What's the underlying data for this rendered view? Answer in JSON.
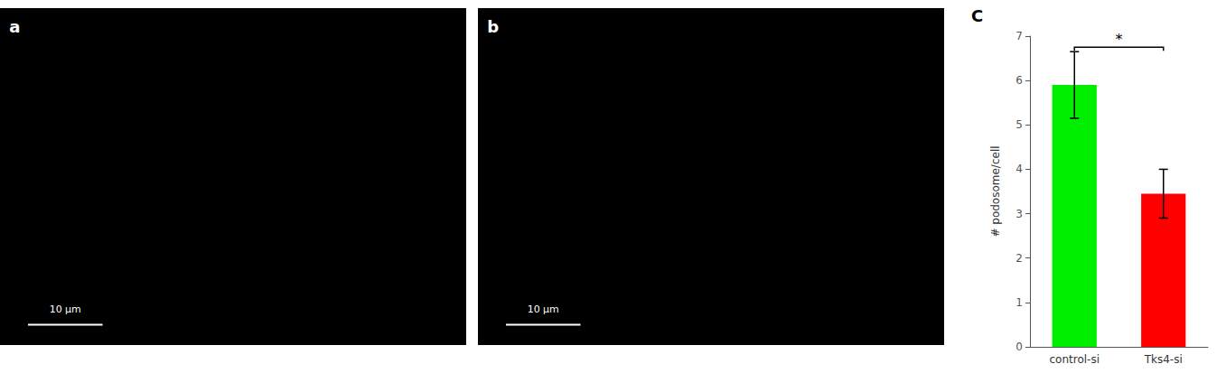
{
  "chart_data": {
    "type": "bar",
    "categories": [
      "control-si",
      "Tks4-si"
    ],
    "values": [
      5.9,
      3.45
    ],
    "errors": [
      0.75,
      0.55
    ],
    "colors": [
      "#00ee00",
      "#ff0000"
    ],
    "ylabel": "# podosome/cell",
    "ylim": [
      0,
      7
    ],
    "yticks": [
      0,
      1,
      2,
      3,
      4,
      5,
      6,
      7
    ],
    "grid": false,
    "panel_label": "C",
    "images": [
      {
        "label": "a",
        "scale_bar": "10 μm"
      },
      {
        "label": "b",
        "scale_bar": "10 μm"
      }
    ],
    "annotations": [
      {
        "text": "*",
        "x": [
          "control-si",
          "Tks4-si"
        ],
        "y": 6.75
      }
    ]
  }
}
